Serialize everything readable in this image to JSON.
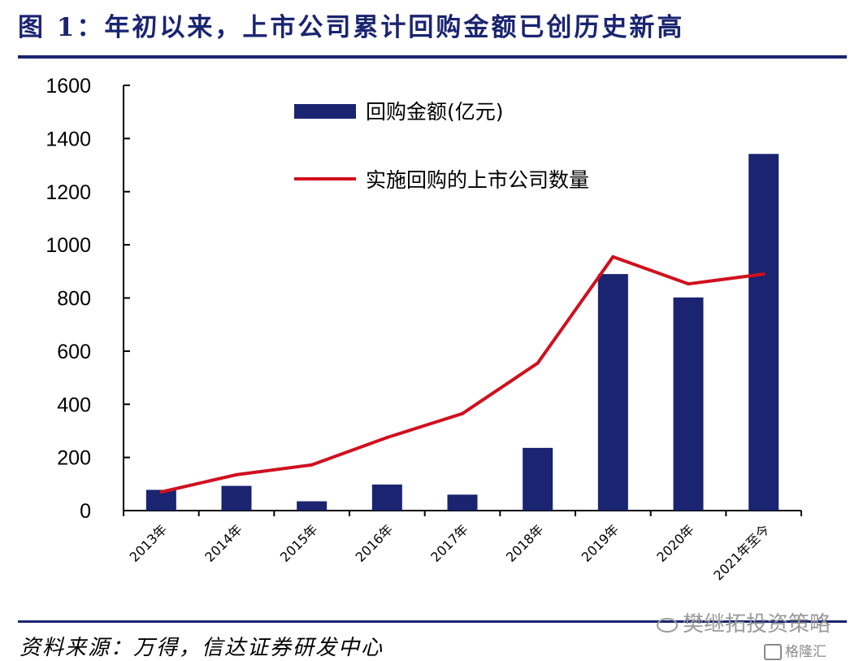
{
  "page": {
    "title": "图  1：年初以来，上市公司累计回购金额已创历史新高",
    "source": "资料来源：万得，信达证券研发中心",
    "watermark": "樊继拓投资策略",
    "brand": "格隆汇"
  },
  "colors": {
    "bar": "#1a2470",
    "line": "#d0101e",
    "rule": "#1a2470"
  },
  "icons": {
    "watermark": "wechat-icon",
    "brand": "gelonghui-logo-icon"
  },
  "chart_data": {
    "type": "bar",
    "categories": [
      "2013年",
      "2014年",
      "2015年",
      "2016年",
      "2017年",
      "2018年",
      "2019年",
      "2020年",
      "2021年至今"
    ],
    "series": [
      {
        "name": "回购金额(亿元)",
        "type": "bar",
        "values": [
          78,
          93,
          35,
          98,
          60,
          236,
          890,
          802,
          1342
        ]
      },
      {
        "name": "实施回购的上市公司数量",
        "type": "line",
        "values": [
          70,
          135,
          172,
          275,
          365,
          555,
          955,
          853,
          890
        ]
      }
    ],
    "ylim": [
      0,
      1600
    ],
    "yticks": [
      "0",
      "200",
      "400",
      "600",
      "800",
      "1000",
      "1200",
      "1400",
      "1600"
    ],
    "grid": false,
    "legend_position": "top-right"
  }
}
